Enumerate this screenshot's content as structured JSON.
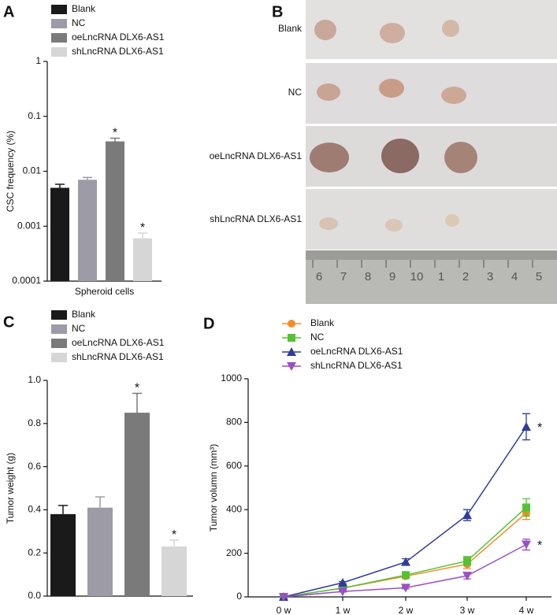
{
  "chart_data": [
    {
      "type": "bar",
      "panel": "A",
      "y_label": "CSC frequency (%)",
      "categories": [
        "Spheroid cells"
      ],
      "log_scale": true,
      "ylim": [
        0.0001,
        1
      ],
      "yticks": [
        0.0001,
        0.001,
        0.01,
        0.1,
        1
      ],
      "series": [
        {
          "name": "Blank",
          "color": "#1a1a1a",
          "values": [
            0.005
          ],
          "errors": [
            0.0008
          ]
        },
        {
          "name": "NC",
          "color": "#9d9ca6",
          "values": [
            0.007
          ],
          "errors": [
            0.0007
          ]
        },
        {
          "name": "oeLncRNA DLX6-AS1",
          "color": "#7a7a7a",
          "values": [
            0.035
          ],
          "errors": [
            0.005
          ],
          "annotation": "*"
        },
        {
          "name": "shLncRNA DLX6-AS1",
          "color": "#d6d6d6",
          "values": [
            0.0006
          ],
          "errors": [
            0.00015
          ],
          "annotation": "*"
        }
      ]
    },
    {
      "type": "bar",
      "panel": "C",
      "y_label": "Tumor weight (g)",
      "categories": [
        null
      ],
      "log_scale": false,
      "ylim": [
        0,
        1
      ],
      "yticks": [
        {
          "value": 0,
          "label": "0.0"
        },
        {
          "value": 0.2,
          "label": "0.2"
        },
        {
          "value": 0.4,
          "label": "0.4"
        },
        {
          "value": 0.6,
          "label": "0.6"
        },
        {
          "value": 0.8,
          "label": "0.8"
        },
        {
          "value": 1,
          "label": "1.0"
        }
      ],
      "series": [
        {
          "name": "Blank",
          "color": "#1a1a1a",
          "values": [
            0.38
          ],
          "errors": [
            0.04
          ]
        },
        {
          "name": "NC",
          "color": "#9d9ca6",
          "values": [
            0.41
          ],
          "errors": [
            0.05
          ]
        },
        {
          "name": "oeLncRNA DLX6-AS1",
          "color": "#7a7a7a",
          "values": [
            0.85
          ],
          "errors": [
            0.09
          ],
          "annotation": "*"
        },
        {
          "name": "shLncRNA DLX6-AS1",
          "color": "#d6d6d6",
          "values": [
            0.23
          ],
          "errors": [
            0.03
          ],
          "annotation": "*"
        }
      ]
    },
    {
      "type": "line",
      "panel": "D",
      "y_label": "Tumor volumn (mm³)",
      "categories": [
        "0 w",
        "1 w",
        "2 w",
        "3 w",
        "4 w"
      ],
      "ylim": [
        0,
        1000
      ],
      "yticks": [
        0,
        200,
        400,
        600,
        800,
        1000
      ],
      "series": [
        {
          "name": "Blank",
          "color": "#f28c28",
          "marker": "circle",
          "values": [
            0,
            40,
            95,
            150,
            385
          ],
          "errors": [
            0,
            5,
            10,
            20,
            30
          ]
        },
        {
          "name": "NC",
          "color": "#55c234",
          "marker": "square",
          "values": [
            0,
            40,
            100,
            165,
            410
          ],
          "errors": [
            0,
            5,
            10,
            20,
            40
          ]
        },
        {
          "name": "oeLncRNA DLX6-AS1",
          "color": "#2e3d9a",
          "marker": "triangle",
          "values": [
            0,
            65,
            160,
            375,
            780
          ],
          "errors": [
            0,
            5,
            15,
            25,
            60
          ],
          "annotation": "*"
        },
        {
          "name": "shLncRNA DLX6-AS1",
          "color": "#9b4fc4",
          "marker": "triangle-down",
          "values": [
            0,
            25,
            42,
            97,
            240
          ],
          "errors": [
            0,
            3,
            5,
            15,
            25
          ],
          "annotation": "*"
        }
      ]
    }
  ],
  "photo_panel": {
    "panel": "B",
    "rows": [
      "Blank",
      "NC",
      "oeLncRNA DLX6-AS1",
      "shLncRNA DLX6-AS1"
    ],
    "ruler_labels": [
      "6",
      "7",
      "8",
      "9",
      "10",
      "1",
      "2",
      "3",
      "4",
      "5"
    ]
  }
}
